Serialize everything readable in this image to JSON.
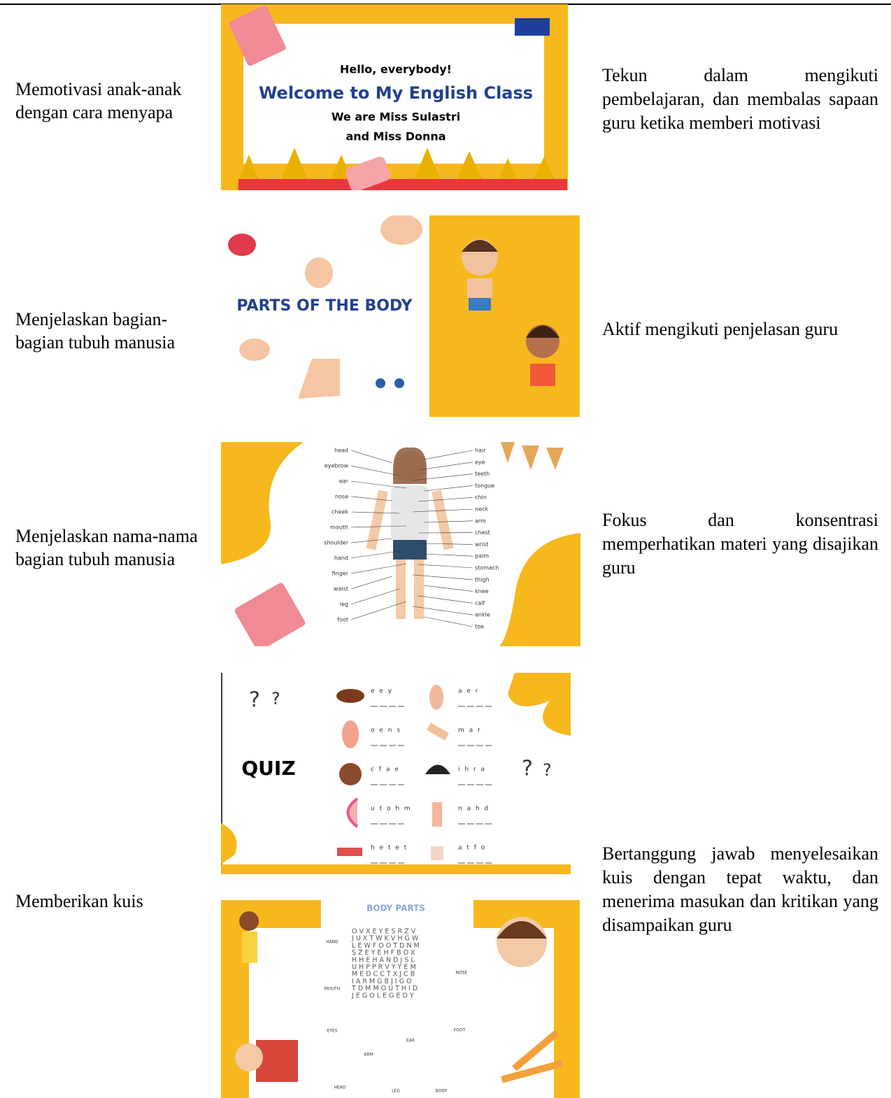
{
  "rows": [
    {
      "teacher": "Memotivasi anak-anak dengan cara menyapa",
      "slides": [
        {
          "lines": [
            "Hello, everybody!",
            "Welcome to My English Class",
            "We are Miss Sulastri",
            "and Miss Donna"
          ]
        }
      ],
      "student": "Tekun dalam mengikuti pembelajaran, dan membalas sapaan guru ketika memberi motivasi"
    },
    {
      "teacher": "Menjelaskan bagian-bagian tubuh manusia",
      "slides": [
        {
          "title": "PARTS OF THE BODY"
        }
      ],
      "student": "Aktif mengikuti penjelasan guru"
    },
    {
      "teacher": "Menjelaskan nama-nama bagian tubuh manusia",
      "slides": [
        {
          "left_labels": [
            "head",
            "eyebrow",
            "ear",
            "nose",
            "cheek",
            "mouth",
            "shoulder",
            "hand",
            "finger",
            "waist",
            "leg",
            "foot"
          ],
          "right_labels": [
            "hair",
            "eye",
            "teeth",
            "tongue",
            "chin",
            "neck",
            "arm",
            "chest",
            "wrist",
            "palm",
            "stomach",
            "thigh",
            "knee",
            "calf",
            "ankle",
            "toe"
          ]
        }
      ],
      "student": "Fokus dan konsentrasi memperhatikan materi yang disajikan guru"
    },
    {
      "teacher": "Memberikan kuis",
      "slides": [
        {
          "title": "QUIZ",
          "scrambles": [
            "e e y",
            "a e r",
            "o e n s",
            "m a r",
            "c f a e",
            "i h r a",
            "u t o h m",
            "n a h d",
            "h e t e t",
            "a t f o"
          ]
        },
        {
          "title": "BODY PARTS",
          "grid": [
            "O V X E Y E S R Z V",
            "J U X T W K V H G W",
            "L E W F O O T D N M",
            "S Z E Y E H F B O X",
            "H H E H A N D J S L",
            "U H P P R V Y Y E M",
            "M E D C C T X J C B",
            "I A R M G B J I G O",
            "T D M M O U T H I D",
            "J E G O L E G E D Y"
          ],
          "labels": [
            "HAND",
            "MOUTH",
            "EYES",
            "NOSE",
            "FOOT",
            "EAR",
            "ARM",
            "HEAD",
            "LEG",
            "BODY"
          ]
        }
      ],
      "student": "Bertanggung jawab menyelesaikan kuis dengan tepat waktu, dan menerima masukan dan kritikan yang disampaikan guru"
    }
  ]
}
